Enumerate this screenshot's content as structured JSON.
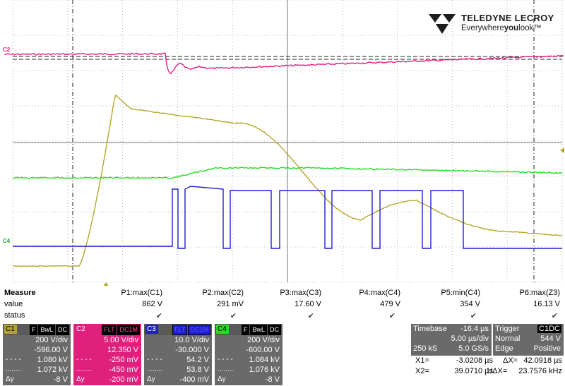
{
  "logo": {
    "brand": "TELEDYNE LECROY",
    "tagline_a": "Everywhere",
    "tagline_b": "you",
    "tagline_c": "look",
    "tm": "™"
  },
  "channel_labels": {
    "c2": "C2",
    "c4": "C4"
  },
  "colors": {
    "c1": "#b5a62a",
    "c2": "#e0207d",
    "c3": "#1f1fd0",
    "c4": "#22dd22",
    "panel": "#6a6a6a"
  },
  "measure": {
    "title": "Measure",
    "row_value": "value",
    "row_status": "status",
    "params": [
      {
        "name": "P1:max(C1)",
        "value": "862 V"
      },
      {
        "name": "P2:max(C2)",
        "value": "291 mV"
      },
      {
        "name": "P3:max(C3)",
        "value": "17.60 V"
      },
      {
        "name": "P4:max(C4)",
        "value": "479 V"
      },
      {
        "name": "P5:min(C4)",
        "value": "354 V"
      },
      {
        "name": "P6:max(Z3)",
        "value": "16.13 V"
      }
    ],
    "check": "✔"
  },
  "channels": [
    {
      "id": "C1",
      "flags": [
        "F",
        "BwL",
        "DC"
      ],
      "vdiv": "200 V/div",
      "offset": "-596.00 V",
      "c1": "1.080 kV",
      "c2": "1.072 kV",
      "dy_label": "Δy",
      "dy": "-8 V",
      "color": "#b5a62a"
    },
    {
      "id": "C2",
      "flags": [
        "FLT",
        "DC1M"
      ],
      "vdiv": "5.00 V/div",
      "offset": "12.350 V",
      "c1": "-250 mV",
      "c2": "-450 mV",
      "dy_label": "Δy",
      "dy": "-200 mV",
      "color": "#e0207d"
    },
    {
      "id": "C3",
      "flags": [
        "FLT",
        "DC1M"
      ],
      "vdiv": "10.0 V/div",
      "offset": "-30.000 V",
      "c1": "54.2 V",
      "c2": "53.8 V",
      "dy_label": "Δy",
      "dy": "-400 mV",
      "color": "#1f1fd0"
    },
    {
      "id": "C4",
      "flags": [
        "F",
        "BwL",
        "DC"
      ],
      "vdiv": "200 V/div",
      "offset": "-600.00 V",
      "c1": "1.084 kV",
      "c2": "1.076 kV",
      "dy_label": "Δy",
      "dy": "-8 V",
      "color": "#22dd22"
    }
  ],
  "cursor_marks": {
    "c1": "- - - -",
    "c2": "........"
  },
  "timebase": {
    "label": "Timebase",
    "delay": "-16.4 µs",
    "tdiv": "5.00 µs/div",
    "samples": "250 kS",
    "rate": "5.0 GS/s"
  },
  "trigger": {
    "label": "Trigger",
    "source": "C1",
    "coupling": "DC",
    "mode": "Normal",
    "level": "544 V",
    "type": "Edge",
    "slope": "Positive"
  },
  "cursors": {
    "x1_label": "X1=",
    "x1": "-3.0208 µs",
    "dx_label": "ΔX=",
    "dx": "42.0918 µs",
    "x2_label": "X2=",
    "x2": "39.0710 µs",
    "inv_label": "1/ΔX=",
    "inv": "23.7576 kHz"
  }
}
